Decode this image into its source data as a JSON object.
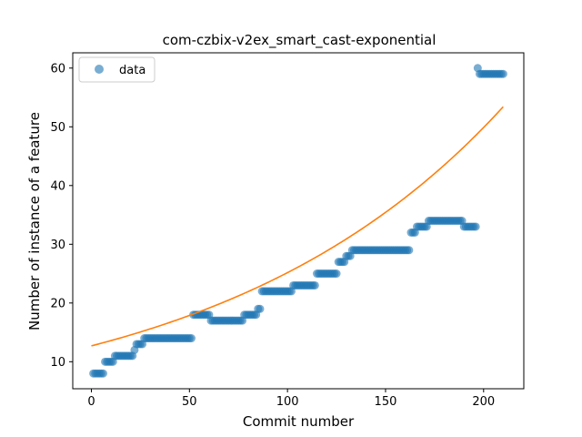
{
  "chart_data": {
    "type": "scatter",
    "title": "com-czbix-v2ex_smart_cast-exponential",
    "xlabel": "Commit number",
    "ylabel": "Number of instance of a feature",
    "xlim": [
      -9.5,
      220.5
    ],
    "ylim": [
      5.4,
      62.6
    ],
    "xticks": [
      0,
      50,
      100,
      150,
      200
    ],
    "yticks": [
      10,
      20,
      30,
      40,
      50,
      60
    ],
    "grid": false,
    "legend": {
      "placement": "top-left",
      "entries": [
        "data"
      ]
    },
    "colors": {
      "data": "#1f77b4",
      "fit": "#ff7f0e"
    },
    "steps": [
      {
        "from": 1,
        "to": 6,
        "y": 8
      },
      {
        "from": 7,
        "to": 11,
        "y": 10
      },
      {
        "from": 12,
        "to": 21,
        "y": 11
      },
      {
        "from": 22,
        "to": 22,
        "y": 12
      },
      {
        "from": 23,
        "to": 26,
        "y": 13
      },
      {
        "from": 27,
        "to": 51,
        "y": 14
      },
      {
        "from": 52,
        "to": 60,
        "y": 18
      },
      {
        "from": 61,
        "to": 77,
        "y": 17
      },
      {
        "from": 78,
        "to": 84,
        "y": 18
      },
      {
        "from": 85,
        "to": 86,
        "y": 19
      },
      {
        "from": 87,
        "to": 102,
        "y": 22
      },
      {
        "from": 103,
        "to": 114,
        "y": 23
      },
      {
        "from": 115,
        "to": 125,
        "y": 25
      },
      {
        "from": 126,
        "to": 129,
        "y": 27
      },
      {
        "from": 130,
        "to": 132,
        "y": 28
      },
      {
        "from": 133,
        "to": 162,
        "y": 29
      },
      {
        "from": 163,
        "to": 165,
        "y": 32
      },
      {
        "from": 166,
        "to": 171,
        "y": 33
      },
      {
        "from": 172,
        "to": 189,
        "y": 34
      },
      {
        "from": 190,
        "to": 196,
        "y": 33
      },
      {
        "from": 197,
        "to": 197,
        "y": 60
      },
      {
        "from": 198,
        "to": 210,
        "y": 59
      }
    ],
    "fit": {
      "model": "exponential",
      "a": 12.7,
      "b": 0.00684,
      "x_start": 0,
      "x_end": 210
    }
  }
}
